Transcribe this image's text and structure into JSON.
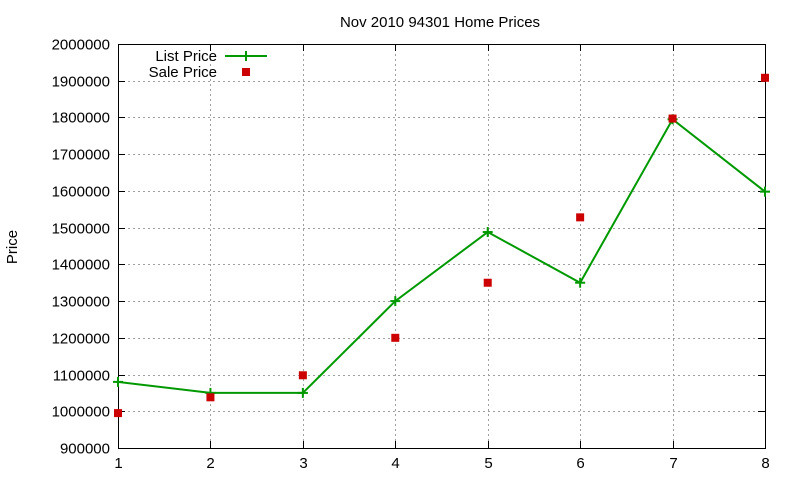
{
  "chart_data": {
    "type": "line",
    "title": "Nov 2010 94301 Home Prices",
    "xlabel": "",
    "ylabel": "Price",
    "x": [
      1,
      2,
      3,
      4,
      5,
      6,
      7,
      8
    ],
    "xlim": [
      1,
      8
    ],
    "ylim": [
      900000,
      2000000
    ],
    "x_ticks": [
      "1",
      "2",
      "3",
      "4",
      "5",
      "6",
      "7",
      "8"
    ],
    "y_ticks": [
      "900000",
      "1000000",
      "1100000",
      "1200000",
      "1300000",
      "1400000",
      "1500000",
      "1600000",
      "1700000",
      "1800000",
      "1900000",
      "2000000"
    ],
    "grid": true,
    "legend_position": "top-left",
    "series": [
      {
        "name": "List Price",
        "style": "lines+points",
        "marker": "plus",
        "color": "#009900",
        "values": [
          1080000,
          1050000,
          1050000,
          1300000,
          1488000,
          1350000,
          1795000,
          1598000
        ]
      },
      {
        "name": "Sale Price",
        "style": "points",
        "marker": "square",
        "color": "#cc0000",
        "values": [
          995000,
          1038000,
          1098000,
          1200000,
          1350000,
          1528000,
          1797000,
          1908000
        ]
      }
    ]
  }
}
